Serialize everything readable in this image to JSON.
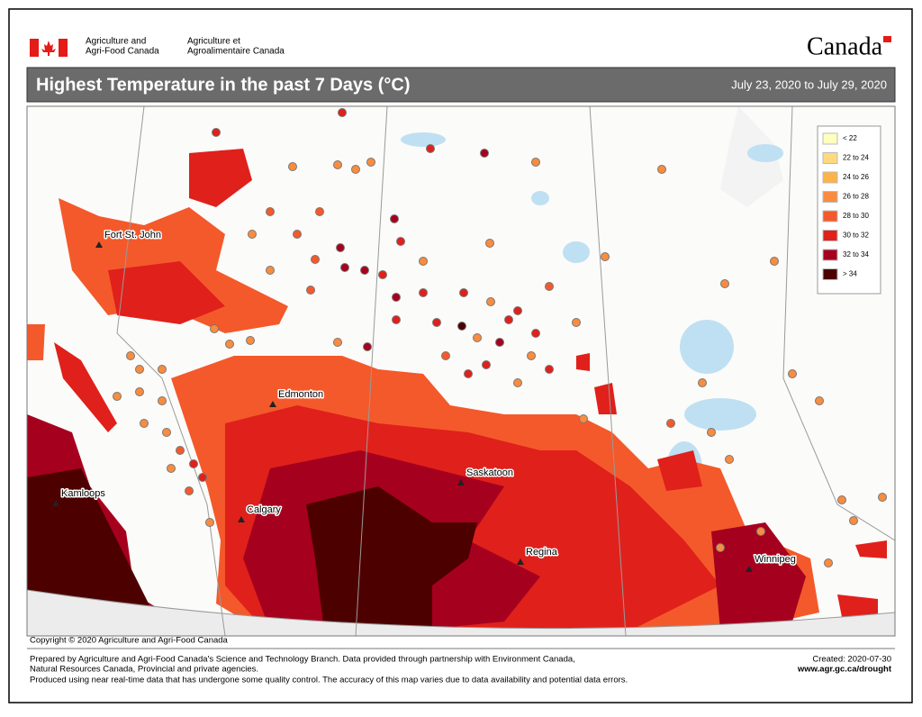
{
  "header": {
    "agency_en": [
      "Agriculture and",
      "Agri-Food Canada"
    ],
    "agency_fr": [
      "Agriculture et",
      "Agroalimentaire Canada"
    ],
    "wordmark": "Canada"
  },
  "title": "Highest Temperature in the past 7 Days (°C)",
  "date_range": "July 23, 2020 to July 29, 2020",
  "legend": [
    {
      "label": "< 22",
      "color": "#ffffbe"
    },
    {
      "label": "22 to 24",
      "color": "#ffd97f"
    },
    {
      "label": "24 to 26",
      "color": "#ffb347"
    },
    {
      "label": "26 to 28",
      "color": "#f98c3f"
    },
    {
      "label": "28 to 30",
      "color": "#f4592b"
    },
    {
      "label": "30 to 32",
      "color": "#e0201b"
    },
    {
      "label": "32 to 34",
      "color": "#a6001f"
    },
    {
      "label": "> 34",
      "color": "#4d0000"
    }
  ],
  "cities": [
    "Fort St. John",
    "Edmonton",
    "Saskatoon",
    "Calgary",
    "Regina",
    "Winnipeg",
    "Kamloops"
  ],
  "copyright": "Copyright © 2020 Agriculture and Agri-Food Canada",
  "footer": {
    "notes": [
      "Prepared by Agriculture and Agri-Food Canada's Science and Technology Branch. Data provided through partnership with Environment Canada,",
      "Natural Resources Canada, Provincial and private agencies.",
      "Produced using near real-time data that has undergone some quality control. The accuracy of this map varies due to data availability and potential data errors."
    ],
    "created": "Created: 2020-07-30",
    "url": "www.agr.gc.ca/drought"
  }
}
